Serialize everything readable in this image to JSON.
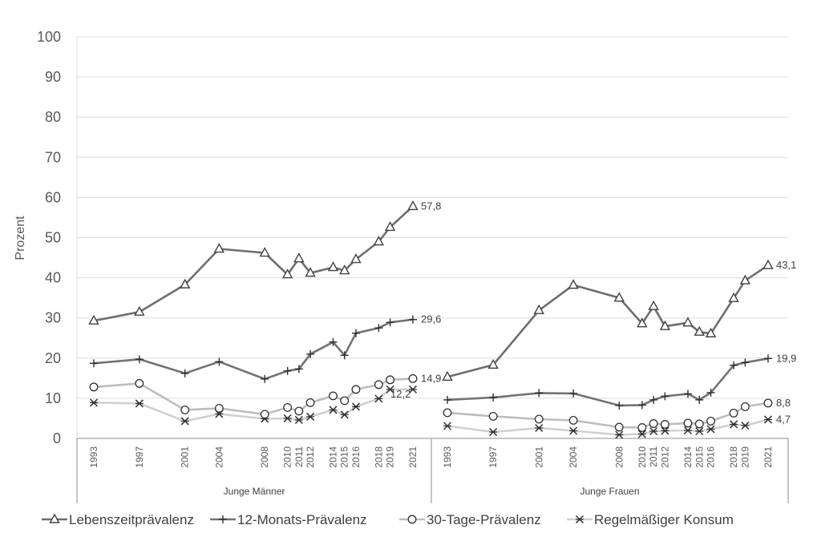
{
  "chart_data": {
    "type": "line",
    "ylabel": "Prozent",
    "ylim": [
      0,
      100
    ],
    "yticks": [
      "0",
      "10",
      "20",
      "30",
      "40",
      "50",
      "60",
      "70",
      "80",
      "90",
      "100"
    ],
    "grid": true,
    "legend_position": "bottom",
    "groups": [
      {
        "name": "Junge Männer",
        "years": [
          "1993",
          "1997",
          "2001",
          "2004",
          "2008",
          "2010",
          "2011",
          "2012",
          "2014",
          "2015",
          "2016",
          "2018",
          "2019",
          "2021"
        ],
        "series": [
          {
            "name": "Lebenszeitprävalenz",
            "values": [
              29.3,
              31.5,
              38.3,
              47.2,
              46.2,
              40.8,
              44.8,
              41.2,
              42.6,
              41.8,
              44.6,
              49.0,
              52.6,
              57.8
            ]
          },
          {
            "name": "12-Monats-Prävalenz",
            "values": [
              18.7,
              19.7,
              16.2,
              19.1,
              14.8,
              16.8,
              17.3,
              21.0,
              24.0,
              20.7,
              26.2,
              27.5,
              28.9,
              29.6
            ]
          },
          {
            "name": "30-Tage-Prävalenz",
            "values": [
              12.8,
              13.7,
              7.1,
              7.5,
              6.0,
              7.7,
              6.8,
              8.9,
              10.6,
              9.4,
              12.2,
              13.4,
              14.6,
              14.9
            ]
          },
          {
            "name": "Regelmäßiger Konsum",
            "values": [
              8.9,
              8.7,
              4.3,
              6.1,
              4.9,
              5.0,
              4.6,
              5.4,
              7.1,
              5.9,
              7.9,
              9.9,
              12.2,
              12.2
            ]
          }
        ],
        "labels": {
          "Lebenszeitprävalenz": "57,8",
          "12-Monats-Prävalenz": "29,6",
          "30-Tage-Prävalenz": "14,9",
          "Regelmäßiger Konsum": "12,2"
        }
      },
      {
        "name": "Junge Frauen",
        "years": [
          "1993",
          "1997",
          "2001",
          "2004",
          "2008",
          "2010",
          "2011",
          "2012",
          "2014",
          "2015",
          "2016",
          "2018",
          "2019",
          "2021"
        ],
        "series": [
          {
            "name": "Lebenszeitprävalenz",
            "values": [
              15.3,
              18.3,
              31.9,
              38.2,
              35.0,
              28.6,
              32.9,
              27.9,
              28.8,
              26.5,
              26.1,
              34.9,
              39.3,
              43.1
            ]
          },
          {
            "name": "12-Monats-Prävalenz",
            "values": [
              9.6,
              10.2,
              11.3,
              11.2,
              8.2,
              8.3,
              9.6,
              10.5,
              11.1,
              9.6,
              11.4,
              18.2,
              18.9,
              19.9
            ]
          },
          {
            "name": "30-Tage-Prävalenz",
            "values": [
              6.4,
              5.5,
              4.8,
              4.5,
              2.8,
              2.7,
              3.7,
              3.5,
              3.8,
              3.6,
              4.3,
              6.3,
              7.9,
              8.8
            ]
          },
          {
            "name": "Regelmäßiger Konsum",
            "values": [
              3.1,
              1.6,
              2.6,
              1.9,
              0.9,
              1.1,
              1.8,
              1.9,
              2.0,
              1.8,
              2.3,
              3.5,
              3.2,
              4.7
            ]
          }
        ],
        "labels": {
          "Lebenszeitprävalenz": "43,1",
          "12-Monats-Prävalenz": "19,9",
          "30-Tage-Prävalenz": "8,8",
          "Regelmäßiger Konsum": "4,7"
        }
      }
    ],
    "legend": [
      "Lebenszeitprävalenz",
      "12-Monats-Prävalenz",
      "30-Tage-Prävalenz",
      "Regelmäßiger Konsum"
    ],
    "colors": {
      "Lebenszeitprävalenz": "#6e6e6e",
      "12-Monats-Prävalenz": "#737373",
      "30-Tage-Prävalenz": "#bdbdbd",
      "Regelmäßiger Konsum": "#d0d0d0",
      "grid": "#dddddd",
      "axis": "#8c8c8c"
    }
  }
}
